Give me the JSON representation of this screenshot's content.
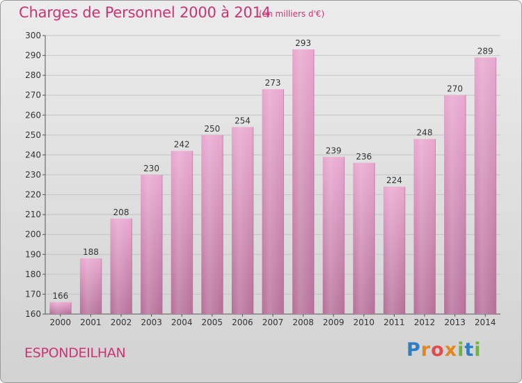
{
  "title": "Charges de Personnel 2000 à 2014",
  "unit_note": "(en milliers d'€)",
  "commune": "ESPONDEILHAN",
  "logo": {
    "text": "Proxiti",
    "icon": "proxiti-logo"
  },
  "colors": {
    "title": "#cc3377",
    "bar_top": "#e9a6cf",
    "bar_bottom": "#b56f98"
  },
  "chart_data": {
    "type": "bar",
    "title": "Charges de Personnel 2000 à 2014",
    "subtitle": "(en milliers d'€)",
    "xlabel": "",
    "ylabel": "",
    "categories": [
      "2000",
      "2001",
      "2002",
      "2003",
      "2004",
      "2005",
      "2006",
      "2007",
      "2008",
      "2009",
      "2010",
      "2011",
      "2012",
      "2013",
      "2014"
    ],
    "values": [
      166,
      188,
      208,
      230,
      242,
      250,
      254,
      273,
      293,
      239,
      236,
      224,
      248,
      270,
      289
    ],
    "ylim": [
      160,
      300
    ],
    "yticks": [
      160,
      170,
      180,
      190,
      200,
      210,
      220,
      230,
      240,
      250,
      260,
      270,
      280,
      290,
      300
    ],
    "grid": true,
    "data_labels": true
  }
}
